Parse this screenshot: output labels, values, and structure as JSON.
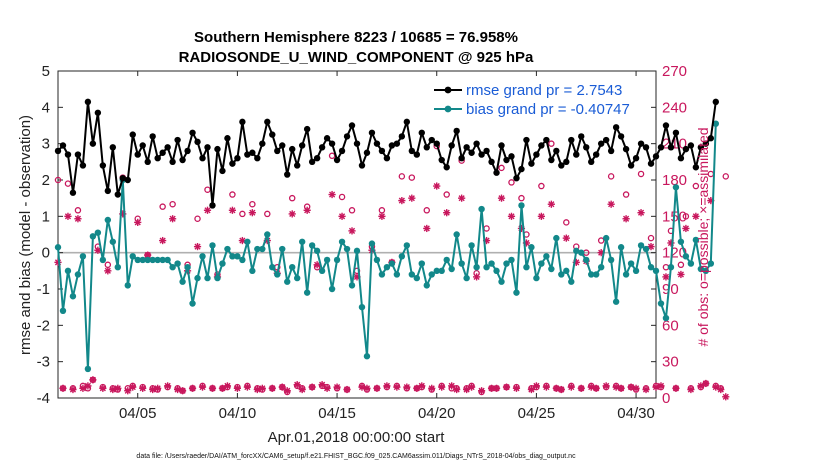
{
  "chart_data": {
    "type": "line",
    "title_line1": "Southern Hemisphere 8223 / 10685 = 76.958%",
    "title_line2": "RADIOSONDE_U_WIND_COMPONENT @ 925 hPa",
    "xlabel": "Apr.01,2018 00:00:00 start",
    "ylabel": "rmse and bias (model - observation)",
    "ylabel_right": "# of obs: o=possible; ×=assimilated",
    "xlim": [
      1,
      31
    ],
    "ylim": [
      -4,
      5
    ],
    "ylim_right": [
      0,
      270
    ],
    "x_ticks": [
      {
        "value": 5,
        "label": "04/05"
      },
      {
        "value": 10,
        "label": "04/10"
      },
      {
        "value": 15,
        "label": "04/15"
      },
      {
        "value": 20,
        "label": "04/20"
      },
      {
        "value": 25,
        "label": "04/25"
      },
      {
        "value": 30,
        "label": "04/30"
      }
    ],
    "y_ticks": [
      -4,
      -3,
      -2,
      -1,
      0,
      1,
      2,
      3,
      4,
      5
    ],
    "y_ticks_right": [
      0,
      30,
      60,
      90,
      120,
      150,
      180,
      210,
      240,
      270
    ],
    "x_start": 1.0,
    "x_step": 0.25,
    "colors": {
      "rmse": "#000000",
      "bias": "#12888a",
      "obs": "#c8175d",
      "zero": "#b0b0b0"
    },
    "legend": [
      {
        "name": "rmse grand pr = 2.7543",
        "series": "rmse"
      },
      {
        "name": "bias grand pr = -0.40747",
        "series": "bias"
      }
    ],
    "series": [
      {
        "name": "rmse",
        "values": [
          2.8,
          2.95,
          2.7,
          1.65,
          2.7,
          2.4,
          4.15,
          3.0,
          3.85,
          2.4,
          1.7,
          2.9,
          1.6,
          2.05,
          2.0,
          3.25,
          2.7,
          2.95,
          2.5,
          3.2,
          2.6,
          2.75,
          2.9,
          2.5,
          3.1,
          2.55,
          2.8,
          3.3,
          3.05,
          2.6,
          2.9,
          1.3,
          2.85,
          2.25,
          3.15,
          2.45,
          2.6,
          3.6,
          2.7,
          2.75,
          2.6,
          3.0,
          3.6,
          3.25,
          2.8,
          2.95,
          2.15,
          2.85,
          2.4,
          2.95,
          3.4,
          2.5,
          2.6,
          2.9,
          3.15,
          3.0,
          2.55,
          2.8,
          3.2,
          3.5,
          3.0,
          2.4,
          2.75,
          3.3,
          3.0,
          2.8,
          2.6,
          2.95,
          3.0,
          3.2,
          3.6,
          2.8,
          2.7,
          3.3,
          2.9,
          3.1,
          3.0,
          2.55,
          2.35,
          2.95,
          3.35,
          2.6,
          2.9,
          2.75,
          3.0,
          2.7,
          2.8,
          2.5,
          2.2,
          2.95,
          2.55,
          2.65,
          2.05,
          2.3,
          3.1,
          2.45,
          2.7,
          2.95,
          3.1,
          2.55,
          2.8,
          2.4,
          2.5,
          3.1,
          2.7,
          3.2,
          2.9,
          2.5,
          2.7,
          3.0,
          3.1,
          2.8,
          3.45,
          3.2,
          2.85,
          2.4,
          2.6,
          3.0,
          2.9,
          2.45,
          2.65,
          2.9,
          3.5,
          2.9,
          3.3,
          2.6,
          2.85,
          2.95,
          2.35,
          2.9,
          3.0,
          3.15,
          4.15
        ]
      },
      {
        "name": "bias",
        "values": [
          0.15,
          -1.6,
          -0.5,
          -1.2,
          -0.6,
          -0.1,
          -3.2,
          0.45,
          0.55,
          -0.2,
          0.9,
          0.3,
          -0.4,
          2.0,
          -0.9,
          -0.1,
          -0.2,
          -0.2,
          -0.2,
          -0.2,
          -0.2,
          -0.2,
          -0.2,
          -0.4,
          -0.3,
          -0.8,
          -0.4,
          -1.4,
          -0.7,
          -0.1,
          -0.7,
          0.2,
          -0.7,
          -0.3,
          0.1,
          -0.1,
          -0.1,
          -0.2,
          0.3,
          -0.5,
          0.1,
          0.1,
          0.5,
          -0.4,
          -0.6,
          0.1,
          -0.8,
          -0.4,
          -0.7,
          0.3,
          -1.1,
          0.2,
          0.05,
          -0.5,
          -0.2,
          -1.0,
          -0.2,
          0.3,
          0.1,
          -0.9,
          0.05,
          -1.5,
          -2.85,
          0.25,
          -0.2,
          -0.6,
          -0.4,
          -0.3,
          -0.6,
          -0.1,
          0.2,
          -0.6,
          -0.7,
          -0.3,
          -0.9,
          -0.6,
          -0.5,
          -0.5,
          -0.2,
          -0.45,
          0.5,
          -0.3,
          -0.7,
          0.2,
          -0.4,
          1.2,
          -0.4,
          -0.3,
          -0.5,
          -0.8,
          -0.3,
          -0.2,
          -1.1,
          1.3,
          -0.4,
          0.15,
          -0.7,
          -0.3,
          -0.1,
          -0.45,
          0.4,
          -0.6,
          -0.5,
          -0.8,
          0.05,
          0.0,
          -0.2,
          -0.6,
          -0.6,
          -0.4,
          0.4,
          -0.2,
          -1.35,
          0.15,
          -0.6,
          -0.3,
          -0.5,
          0.2,
          0.1,
          -0.4,
          -0.5,
          -1.4,
          -1.8,
          -0.4,
          1.8,
          0.3,
          -0.1,
          -0.3,
          0.35,
          -0.45,
          -0.5,
          -0.3,
          3.55
        ]
      },
      {
        "name": "obs_possible",
        "values": [
          180,
          8,
          177,
          8,
          155,
          10,
          8,
          15,
          125,
          9,
          110,
          8,
          7,
          182,
          8,
          10,
          148,
          9,
          118,
          8,
          7,
          158,
          9,
          160,
          8,
          6,
          110,
          8,
          148,
          10,
          172,
          8,
          102,
          8,
          9,
          168,
          9,
          152,
          10,
          160,
          8,
          7,
          152,
          8,
          108,
          9,
          5,
          165,
          10,
          8,
          158,
          9,
          108,
          10,
          9,
          200,
          8,
          166,
          7,
          155,
          105,
          10,
          7,
          125,
          8,
          155,
          9,
          112,
          10,
          183,
          8,
          182,
          8,
          9,
          155,
          7,
          208,
          10,
          168,
          8,
          8,
          196,
          8,
          10,
          103,
          5,
          140,
          8,
          8,
          190,
          9,
          178,
          9,
          165,
          135,
          8,
          9,
          175,
          10,
          210,
          8,
          7,
          145,
          10,
          125,
          8,
          120,
          10,
          8,
          130,
          9,
          183,
          10,
          8,
          168,
          9,
          7,
          185,
          8,
          132,
          10,
          9,
          108,
          138,
          8,
          110,
          150,
          8,
          175,
          9,
          12,
          185,
          10,
          8,
          183
        ]
      },
      {
        "name": "obs_assimilated",
        "values": [
          112,
          8,
          150,
          7,
          148,
          8,
          10,
          15,
          122,
          8,
          105,
          7,
          8,
          152,
          6,
          9,
          145,
          8,
          118,
          7,
          8,
          130,
          10,
          148,
          7,
          6,
          105,
          8,
          125,
          9,
          155,
          8,
          100,
          8,
          10,
          155,
          8,
          130,
          9,
          153,
          7,
          8,
          130,
          8,
          103,
          9,
          6,
          152,
          11,
          7,
          155,
          9,
          110,
          11,
          8,
          168,
          9,
          150,
          7,
          138,
          100,
          9,
          8,
          122,
          8,
          150,
          10,
          112,
          9,
          163,
          9,
          165,
          8,
          10,
          140,
          8,
          175,
          9,
          153,
          10,
          7,
          165,
          7,
          9,
          100,
          6,
          130,
          8,
          8,
          165,
          9,
          150,
          8,
          140,
          128,
          7,
          10,
          150,
          9,
          160,
          8,
          7,
          132,
          9,
          112,
          8,
          113,
          9,
          8,
          120,
          10,
          160,
          9,
          8,
          148,
          9,
          8,
          153,
          7,
          125,
          9,
          10,
          100,
          128,
          8,
          102,
          140,
          7,
          150,
          10,
          12,
          163,
          9,
          7,
          1
        ]
      }
    ],
    "footnote": "data file: /Users/raeder/DAI/ATM_forcXX/CAM6_setup/f.e21.FHIST_BGC.f09_025.CAM6assim.011/Diags_NTrS_2018-04/obs_diag_output.nc"
  }
}
